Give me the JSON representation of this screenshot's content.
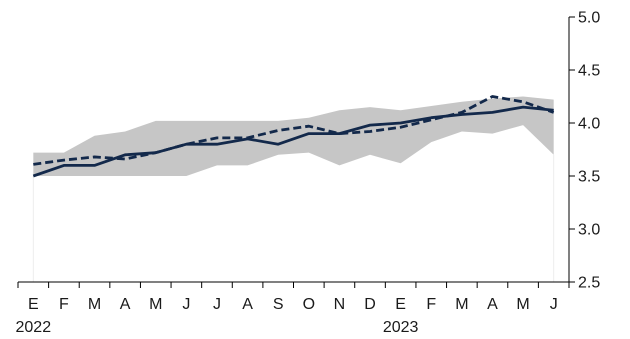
{
  "chart_data": {
    "type": "line",
    "categories": [
      "E",
      "F",
      "M",
      "A",
      "M",
      "J",
      "J",
      "A",
      "S",
      "O",
      "N",
      "D",
      "E",
      "F",
      "M",
      "A",
      "M",
      "J"
    ],
    "year_labels": [
      {
        "label": "2022",
        "index": 0
      },
      {
        "label": "2023",
        "index": 12
      }
    ],
    "ylim": [
      2.5,
      5.0
    ],
    "y_ticks": [
      "2.5",
      "3.0",
      "3.5",
      "4.0",
      "4.5",
      "5.0"
    ],
    "y_axis_side": "right",
    "series": [
      {
        "style": "solid",
        "color": "#13294b",
        "values": [
          3.5,
          3.6,
          3.6,
          3.7,
          3.72,
          3.8,
          3.8,
          3.85,
          3.8,
          3.9,
          3.9,
          3.98,
          4.0,
          4.05,
          4.08,
          4.1,
          4.15,
          4.12
        ]
      },
      {
        "style": "dashed",
        "color": "#13294b",
        "values": [
          3.61,
          3.65,
          3.68,
          3.66,
          3.72,
          3.8,
          3.86,
          3.86,
          3.93,
          3.97,
          3.9,
          3.92,
          3.96,
          4.03,
          4.1,
          4.25,
          4.2,
          4.1
        ]
      }
    ],
    "band": {
      "color": "#c6c6c6",
      "lower": [
        3.5,
        3.5,
        3.5,
        3.5,
        3.5,
        3.5,
        3.6,
        3.6,
        3.7,
        3.72,
        3.6,
        3.7,
        3.62,
        3.82,
        3.92,
        3.9,
        3.98,
        3.7
      ],
      "upper": [
        3.72,
        3.72,
        3.88,
        3.92,
        4.02,
        4.02,
        4.02,
        4.02,
        4.02,
        4.05,
        4.12,
        4.15,
        4.12,
        4.16,
        4.2,
        4.23,
        4.25,
        4.22
      ]
    }
  }
}
